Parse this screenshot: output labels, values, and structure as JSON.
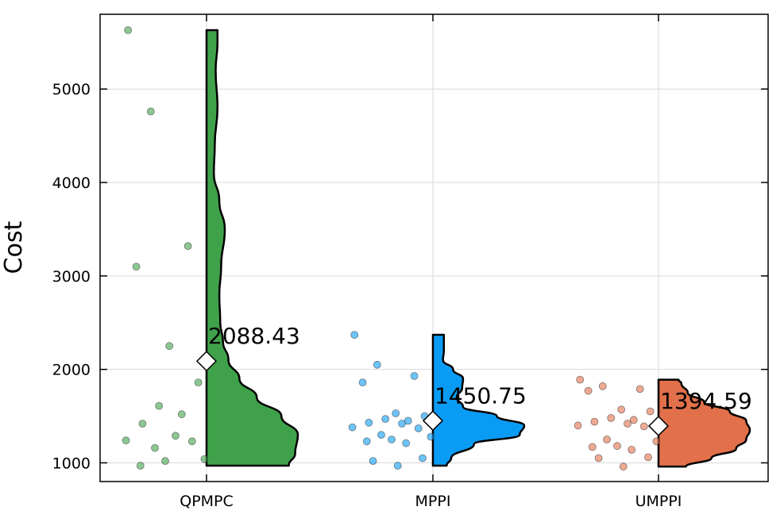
{
  "chart_data": {
    "type": "violin",
    "title": "",
    "xlabel": "",
    "ylabel": "Cost",
    "ylim": [
      800,
      5800
    ],
    "yticks": [
      1000,
      2000,
      3000,
      4000,
      5000
    ],
    "grid": true,
    "legend": "none",
    "categories": [
      "QPMPC",
      "MPPI",
      "UMPPI"
    ],
    "series": [
      {
        "category": "QPMPC",
        "color": "#3fa24a",
        "mean": 2088.43,
        "mean_label": "2088.43",
        "points": [
          5630,
          4760,
          3320,
          3100,
          2250,
          1860,
          1610,
          1520,
          1420,
          1290,
          1240,
          1230,
          1160,
          1040,
          1020,
          970
        ],
        "profile": [
          [
            970,
            0.9
          ],
          [
            1100,
            0.97
          ],
          [
            1300,
            1.0
          ],
          [
            1500,
            0.82
          ],
          [
            1700,
            0.55
          ],
          [
            1900,
            0.36
          ],
          [
            2100,
            0.24
          ],
          [
            2300,
            0.18
          ],
          [
            2500,
            0.15
          ],
          [
            2800,
            0.14
          ],
          [
            3100,
            0.16
          ],
          [
            3500,
            0.2
          ],
          [
            3800,
            0.14
          ],
          [
            4100,
            0.08
          ],
          [
            4400,
            0.09
          ],
          [
            4800,
            0.12
          ],
          [
            5200,
            0.1
          ],
          [
            5500,
            0.12
          ],
          [
            5630,
            0.12
          ]
        ]
      },
      {
        "category": "MPPI",
        "color": "#0a9cf5",
        "mean": 1450.75,
        "mean_label": "1450.75",
        "points": [
          2370,
          2050,
          1930,
          1860,
          1530,
          1500,
          1470,
          1450,
          1430,
          1420,
          1380,
          1370,
          1300,
          1280,
          1250,
          1230,
          1210,
          1050,
          1020,
          970
        ],
        "profile": [
          [
            970,
            0.15
          ],
          [
            1050,
            0.2
          ],
          [
            1200,
            0.45
          ],
          [
            1300,
            0.95
          ],
          [
            1400,
            1.0
          ],
          [
            1500,
            0.7
          ],
          [
            1600,
            0.33
          ],
          [
            1700,
            0.26
          ],
          [
            1800,
            0.32
          ],
          [
            1900,
            0.33
          ],
          [
            2000,
            0.22
          ],
          [
            2100,
            0.11
          ],
          [
            2200,
            0.12
          ],
          [
            2300,
            0.12
          ],
          [
            2370,
            0.12
          ]
        ]
      },
      {
        "category": "UMPPI",
        "color": "#e2704a",
        "mean": 1394.59,
        "mean_label": "1394.59",
        "points": [
          1890,
          1820,
          1790,
          1770,
          1570,
          1550,
          1480,
          1460,
          1440,
          1420,
          1400,
          1390,
          1250,
          1230,
          1180,
          1170,
          1140,
          1060,
          1050,
          960
        ],
        "profile": [
          [
            960,
            0.3
          ],
          [
            1050,
            0.58
          ],
          [
            1150,
            0.85
          ],
          [
            1250,
            0.96
          ],
          [
            1350,
            1.0
          ],
          [
            1450,
            0.96
          ],
          [
            1550,
            0.78
          ],
          [
            1650,
            0.5
          ],
          [
            1750,
            0.32
          ],
          [
            1850,
            0.25
          ],
          [
            1890,
            0.22
          ]
        ]
      }
    ]
  }
}
